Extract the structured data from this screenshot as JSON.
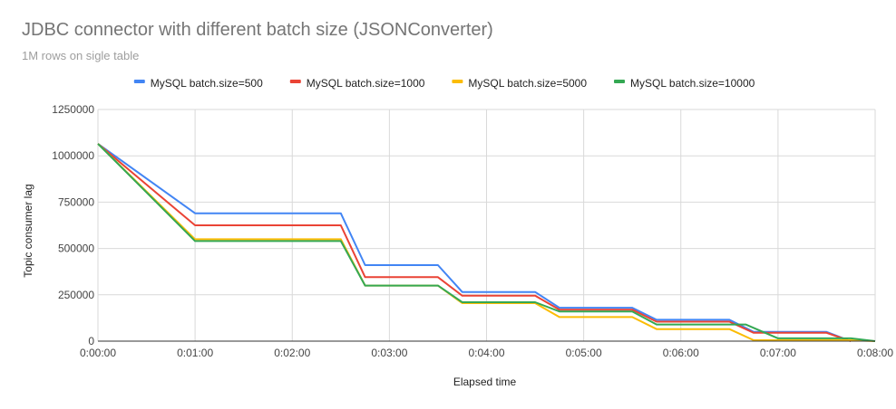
{
  "chart_data": {
    "type": "line",
    "title": "JDBC connector with different batch size (JSONConverter)",
    "subtitle": "1M rows on sigle table",
    "xlabel": "Elapsed time",
    "ylabel": "Topic consumer lag",
    "xlim": [
      0,
      480
    ],
    "ylim": [
      0,
      1250000
    ],
    "x_unit": "seconds",
    "x_ticks": [
      {
        "value": 0,
        "label": "0:00:00"
      },
      {
        "value": 60,
        "label": "0:01:00"
      },
      {
        "value": 120,
        "label": "0:02:00"
      },
      {
        "value": 180,
        "label": "0:03:00"
      },
      {
        "value": 240,
        "label": "0:04:00"
      },
      {
        "value": 300,
        "label": "0:05:00"
      },
      {
        "value": 360,
        "label": "0:06:00"
      },
      {
        "value": 420,
        "label": "0:07:00"
      },
      {
        "value": 480,
        "label": "0:08:00"
      }
    ],
    "y_ticks": [
      {
        "value": 0,
        "label": "0"
      },
      {
        "value": 250000,
        "label": "250000"
      },
      {
        "value": 500000,
        "label": "500000"
      },
      {
        "value": 750000,
        "label": "750000"
      },
      {
        "value": 1000000,
        "label": "1000000"
      },
      {
        "value": 1250000,
        "label": "1250000"
      }
    ],
    "grid": true,
    "legend_position": "top",
    "series": [
      {
        "name": "MySQL batch.size=500",
        "color": "#4285f4",
        "points": [
          [
            0,
            1065000
          ],
          [
            60,
            690000
          ],
          [
            150,
            690000
          ],
          [
            165,
            410000
          ],
          [
            210,
            410000
          ],
          [
            225,
            265000
          ],
          [
            270,
            265000
          ],
          [
            285,
            180000
          ],
          [
            330,
            180000
          ],
          [
            345,
            115000
          ],
          [
            390,
            115000
          ],
          [
            405,
            50000
          ],
          [
            450,
            50000
          ],
          [
            465,
            0
          ]
        ]
      },
      {
        "name": "MySQL batch.size=1000",
        "color": "#ea4335",
        "points": [
          [
            0,
            1065000
          ],
          [
            60,
            625000
          ],
          [
            150,
            625000
          ],
          [
            165,
            345000
          ],
          [
            210,
            345000
          ],
          [
            225,
            245000
          ],
          [
            270,
            245000
          ],
          [
            285,
            170000
          ],
          [
            330,
            170000
          ],
          [
            345,
            105000
          ],
          [
            390,
            105000
          ],
          [
            405,
            45000
          ],
          [
            450,
            45000
          ],
          [
            465,
            0
          ]
        ]
      },
      {
        "name": "MySQL batch.size=5000",
        "color": "#fbbc04",
        "points": [
          [
            0,
            1065000
          ],
          [
            60,
            550000
          ],
          [
            150,
            550000
          ],
          [
            165,
            300000
          ],
          [
            210,
            300000
          ],
          [
            225,
            205000
          ],
          [
            270,
            205000
          ],
          [
            285,
            130000
          ],
          [
            330,
            130000
          ],
          [
            345,
            65000
          ],
          [
            390,
            65000
          ],
          [
            405,
            5000
          ],
          [
            465,
            5000
          ],
          [
            480,
            0
          ]
        ]
      },
      {
        "name": "MySQL batch.size=10000",
        "color": "#34a853",
        "points": [
          [
            0,
            1065000
          ],
          [
            60,
            540000
          ],
          [
            150,
            540000
          ],
          [
            165,
            300000
          ],
          [
            210,
            300000
          ],
          [
            225,
            210000
          ],
          [
            270,
            210000
          ],
          [
            285,
            160000
          ],
          [
            330,
            160000
          ],
          [
            345,
            90000
          ],
          [
            400,
            90000
          ],
          [
            420,
            15000
          ],
          [
            465,
            15000
          ],
          [
            480,
            0
          ]
        ]
      }
    ]
  }
}
